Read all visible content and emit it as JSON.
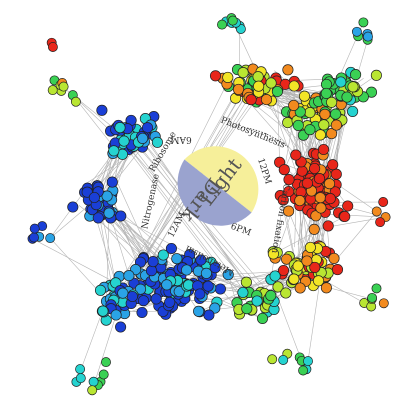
{
  "center": {
    "light_label": "Light",
    "dark_label": "Dark",
    "light_color": "#f6ef9a",
    "dark_color": "#9aa3cf",
    "times": {
      "am6": "6AM",
      "pm12": "12PM",
      "pm6": "6PM",
      "am12": "12AM"
    }
  },
  "processes": {
    "ribosome": "Ribosome",
    "photosynthesis": "Photosynthesis",
    "nitrogenase": "Nitrogenase",
    "carbon_fixation": "Carbon fixation",
    "metabolism": "Metabolism"
  },
  "palette": {
    "blue": "#1a3fd6",
    "light_blue": "#2aa3e6",
    "cyan": "#25d3d0",
    "green": "#3ad154",
    "yellow_green": "#b9e632",
    "yellow": "#f2e526",
    "orange": "#f28a1e",
    "red": "#e8261a",
    "edge": "#b5b5b5",
    "node_stroke": "#222222"
  }
}
